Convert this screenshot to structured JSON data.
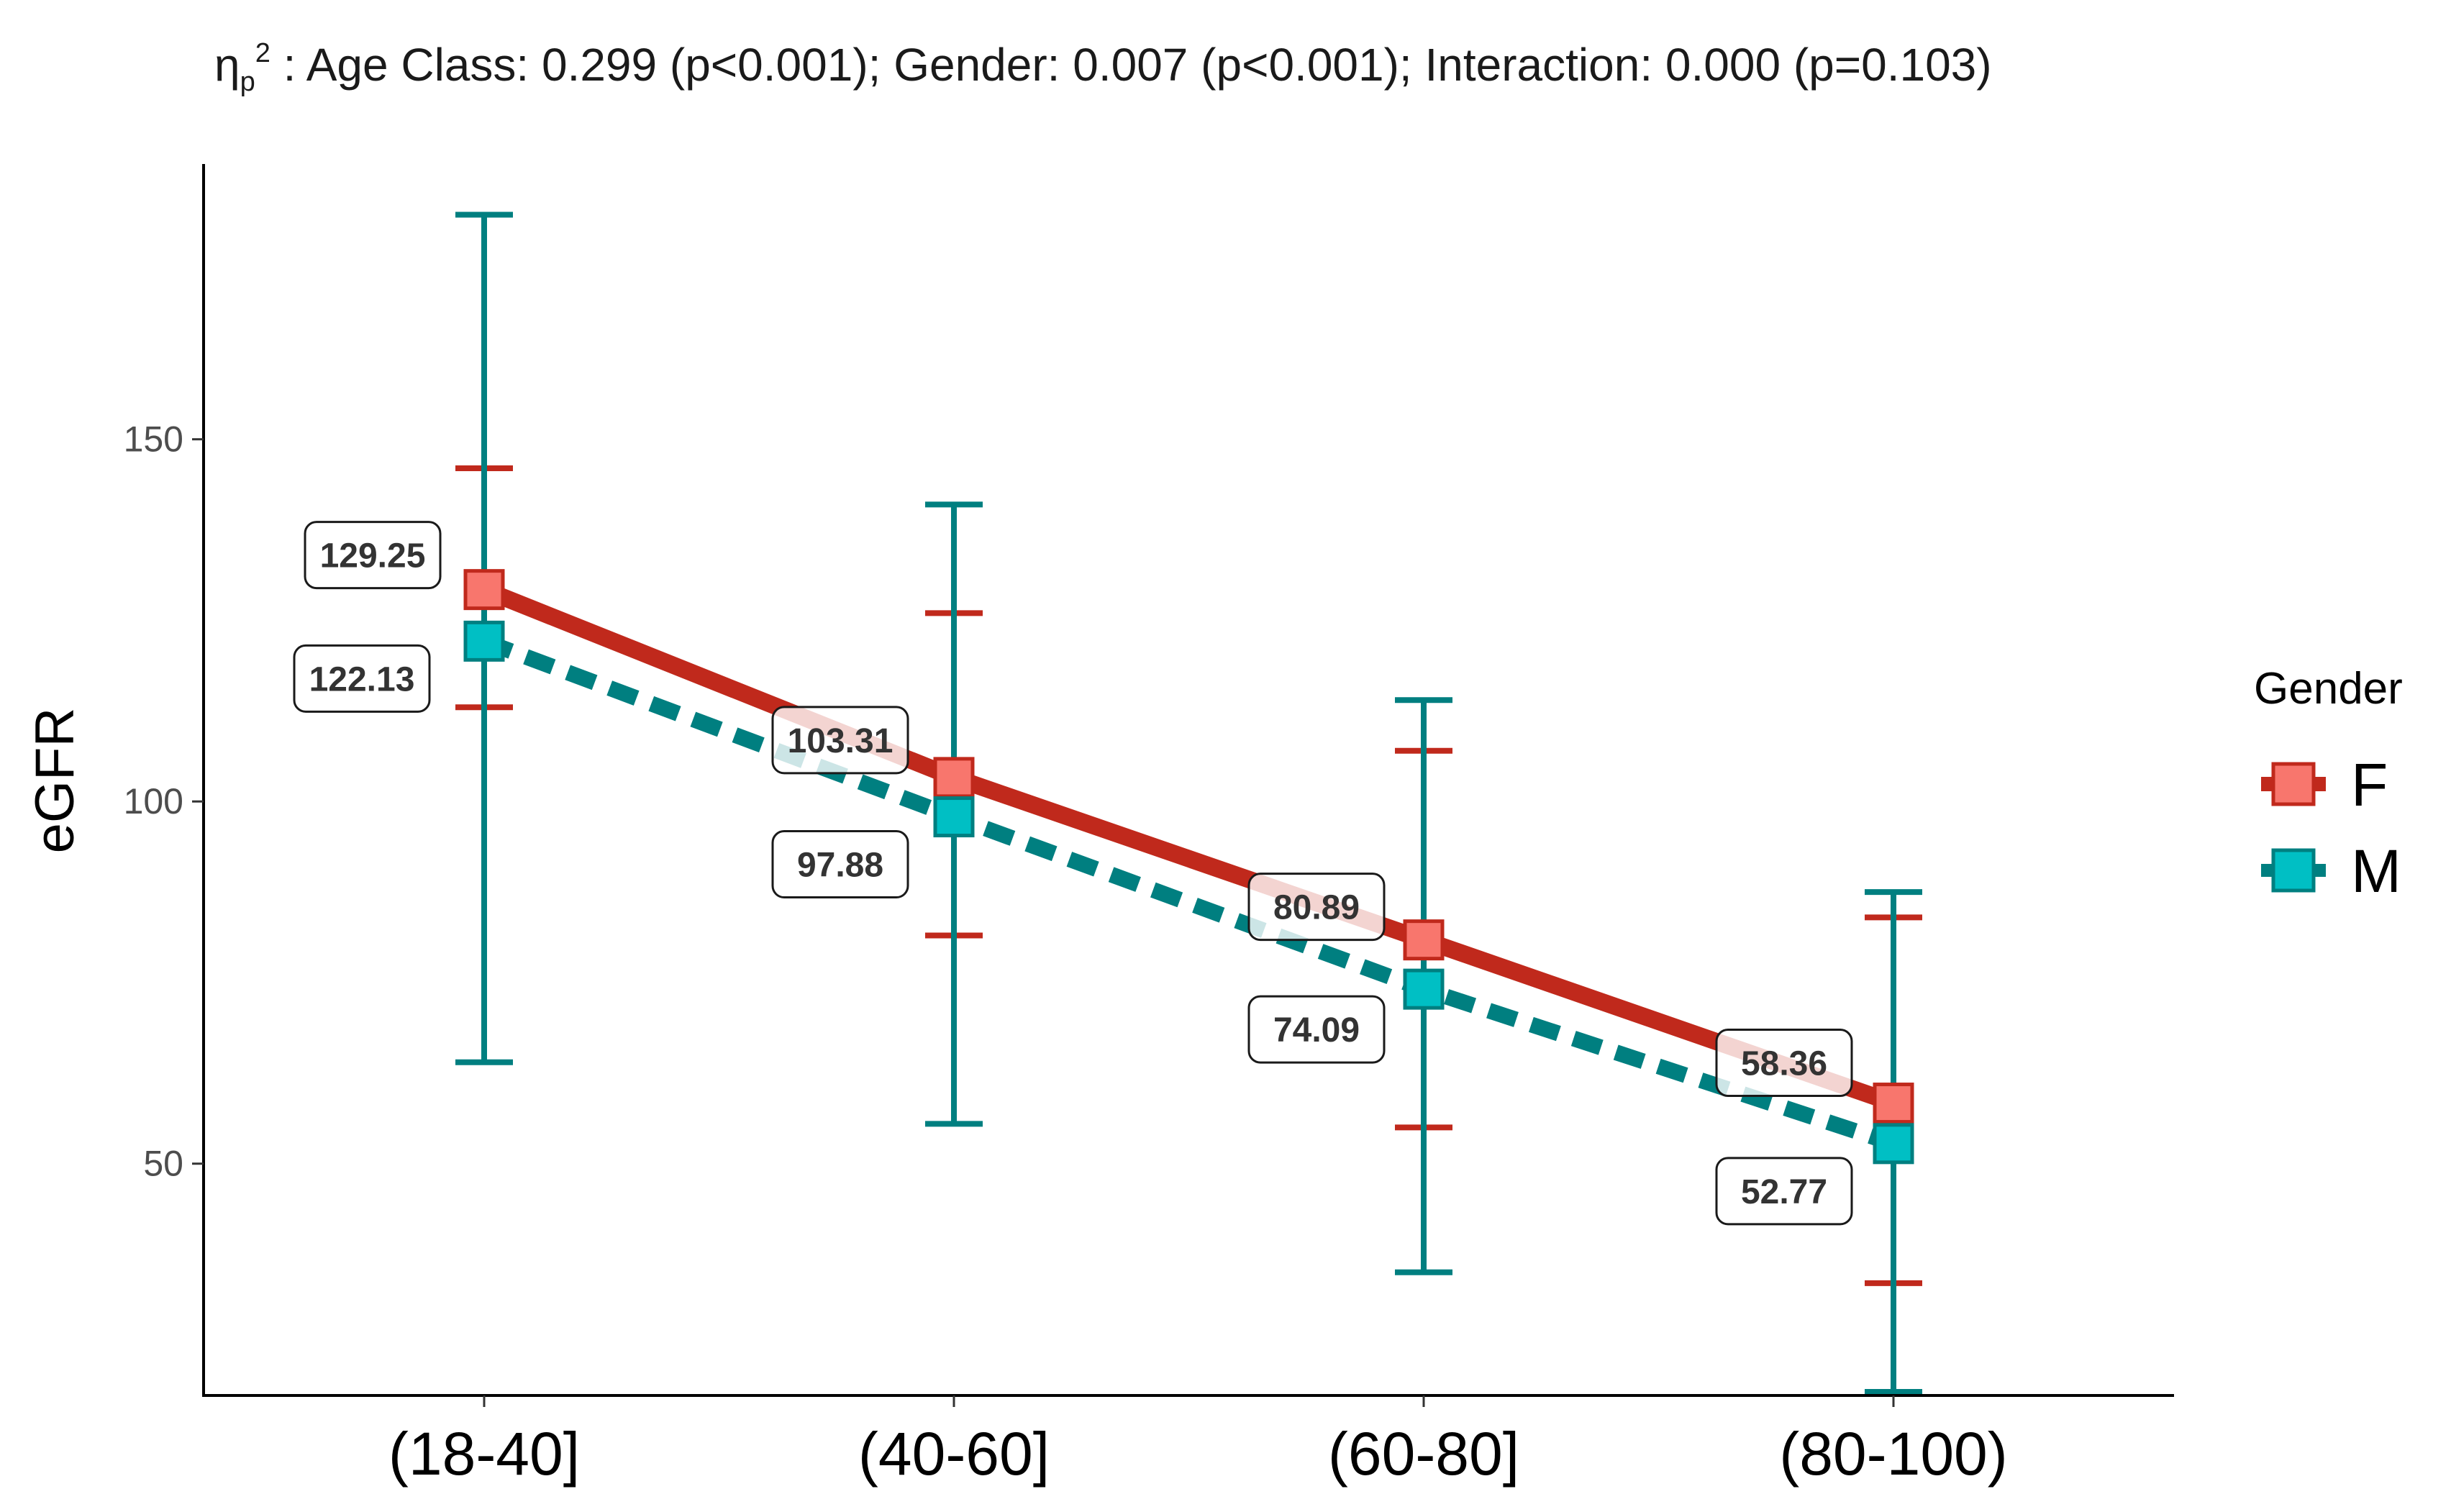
{
  "chart_data": {
    "type": "line",
    "title_prefix": "η",
    "title_sub": "p",
    "title_sup": "2",
    "title_rest": " : Age Class: 0.299 (p<0.001);  Gender: 0.007 (p<0.001); Interaction: 0.000 (p=0.103)",
    "xlabel": "",
    "ylabel": "eGFR",
    "ylim": [
      18,
      188
    ],
    "yticks": [
      50,
      100,
      150
    ],
    "categories": [
      "(18-40]",
      "(40-60]",
      "(60-80]",
      "(80-100)"
    ],
    "legend_title": "Gender",
    "legend_position": "right",
    "grid": false,
    "series": [
      {
        "name": "F",
        "values": [
          129.25,
          103.31,
          80.89,
          58.36
        ],
        "labels": [
          "129.25",
          "103.31",
          "80.89",
          "58.36"
        ],
        "err_upper": [
          146,
          126,
          107,
          84
        ],
        "err_lower": [
          113,
          81.5,
          55,
          33.5
        ],
        "line_color": "#c0291c",
        "fill_color": "#f8766d",
        "dashed": false
      },
      {
        "name": "M",
        "values": [
          122.13,
          97.88,
          74.09,
          52.77
        ],
        "labels": [
          "122.13",
          "97.88",
          "74.09",
          "52.77"
        ],
        "err_upper": [
          181,
          141,
          114,
          87.5
        ],
        "err_lower": [
          64,
          55.5,
          35,
          18.5
        ],
        "line_color": "#007f80",
        "fill_color": "#00bfc4",
        "dashed": true
      }
    ]
  }
}
